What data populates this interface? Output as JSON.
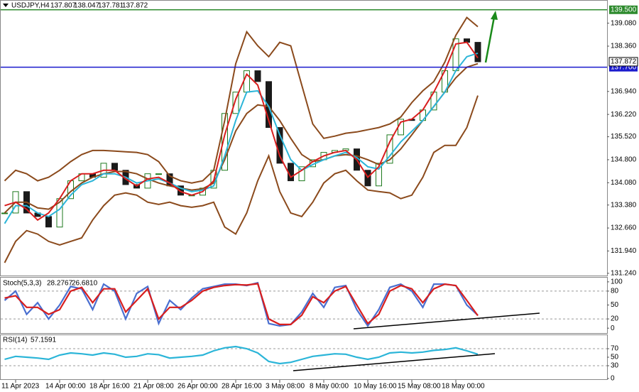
{
  "chart_data": [
    {
      "type": "candlestick",
      "title": "USDJPY,H4",
      "last_bar": {
        "open": 137.807,
        "high": 138.047,
        "low": 137.781,
        "close": 137.872
      },
      "categories": [
        null,
        "11 Apr 2023",
        null,
        null,
        null,
        "14 Apr 00:00",
        null,
        null,
        null,
        "18 Apr 16:00",
        null,
        null,
        null,
        "21 Apr 08:00",
        null,
        null,
        null,
        "26 Apr 00:00",
        null,
        null,
        null,
        "28 Apr 16:00",
        null,
        null,
        null,
        "3 May 08:00",
        null,
        null,
        null,
        "8 May 00:00",
        null,
        null,
        null,
        "10 May 16:00",
        null,
        null,
        null,
        "15 May 08:00",
        null,
        null,
        null,
        "18 May 00:00",
        null,
        null
      ],
      "ylim": [
        131.17,
        139.74
      ],
      "yticks": [
        {
          "value": 139.08,
          "label": "139.080"
        },
        {
          "value": 138.36,
          "label": "138.360"
        },
        {
          "value": 136.94,
          "label": "136.940"
        },
        {
          "value": 136.22,
          "label": "136.220"
        },
        {
          "value": 135.52,
          "label": "135.520"
        },
        {
          "value": 134.8,
          "label": "134.800"
        },
        {
          "value": 134.08,
          "label": "134.080"
        },
        {
          "value": 133.38,
          "label": "133.380"
        },
        {
          "value": 132.66,
          "label": "132.660"
        },
        {
          "value": 131.94,
          "label": "131.940"
        },
        {
          "value": 131.24,
          "label": "131.240"
        }
      ],
      "series": [
        {
          "draw": "candles",
          "color": "#1a1a1a",
          "values": [
            133.13,
            133.8,
            133.13,
            133.02,
            132.69,
            133.58,
            134.14,
            134.36,
            134.25,
            134.69,
            134.47,
            134.02,
            133.91,
            134.36,
            134.36,
            133.98,
            133.69,
            133.69,
            133.91,
            134.47,
            136.25,
            136.92,
            137.59,
            137.25,
            135.81,
            134.69,
            134.14,
            134.58,
            134.8,
            135.03,
            135.09,
            135.14,
            134.47,
            133.98,
            134.69,
            135.58,
            136.07,
            136.03,
            136.36,
            136.92,
            137.59,
            138.59,
            138.48,
            137.87
          ]
        },
        {
          "draw": "line",
          "color": "#8b4a1c",
          "values": [
            134.14,
            134.47,
            134.36,
            134.14,
            134.25,
            134.47,
            134.74,
            134.96,
            135.09,
            135.09,
            135.07,
            135.05,
            135.03,
            134.96,
            134.74,
            134.29,
            134.14,
            134.07,
            134.14,
            134.47,
            136.03,
            137.81,
            138.81,
            138.37,
            138.03,
            138.48,
            138.37,
            137.14,
            135.92,
            135.47,
            135.54,
            135.63,
            135.67,
            135.74,
            135.81,
            135.92,
            136.14,
            136.59,
            136.96,
            137.25,
            137.86,
            138.7,
            139.26,
            138.97
          ]
        },
        {
          "draw": "line",
          "color": "#8b4a1c",
          "values": [
            133.13,
            133.47,
            133.47,
            133.29,
            133.25,
            133.47,
            133.8,
            134.07,
            134.25,
            134.36,
            134.43,
            134.43,
            134.36,
            134.2,
            134.07,
            133.98,
            133.91,
            133.85,
            133.89,
            134.07,
            134.8,
            135.7,
            136.25,
            136.52,
            136.47,
            136.03,
            135.47,
            134.96,
            134.74,
            134.8,
            134.92,
            134.96,
            134.92,
            134.8,
            134.65,
            134.8,
            135.14,
            135.58,
            136.03,
            136.47,
            136.92,
            137.37,
            137.7,
            137.81
          ]
        },
        {
          "draw": "line",
          "color": "#8b4a1c",
          "values": [
            131.57,
            132.24,
            132.58,
            132.47,
            132.24,
            132.13,
            132.24,
            132.35,
            132.91,
            133.36,
            133.69,
            133.76,
            133.69,
            133.47,
            133.4,
            133.47,
            133.36,
            133.31,
            133.36,
            133.47,
            132.69,
            132.47,
            133.13,
            134.14,
            134.92,
            133.8,
            133.13,
            133.02,
            133.47,
            134.07,
            134.36,
            134.47,
            134.14,
            133.85,
            133.8,
            133.76,
            133.58,
            133.69,
            134.25,
            135.03,
            135.25,
            135.25,
            135.81,
            136.81
          ]
        },
        {
          "draw": "line",
          "color": "#2bb5d8",
          "values": [
            132.8,
            133.36,
            133.36,
            133.13,
            133.02,
            133.25,
            133.69,
            134.02,
            134.14,
            134.36,
            134.36,
            134.25,
            134.07,
            134.14,
            134.2,
            134.07,
            133.91,
            133.8,
            133.85,
            133.98,
            134.92,
            136.03,
            136.92,
            136.96,
            136.47,
            135.58,
            134.8,
            134.47,
            134.65,
            134.8,
            134.92,
            135.03,
            134.87,
            134.58,
            134.51,
            134.92,
            135.36,
            135.69,
            136.03,
            136.47,
            136.92,
            137.59,
            138.03,
            138.14
          ]
        },
        {
          "draw": "line",
          "color": "#d81e1e",
          "values": [
            133.36,
            133.47,
            133.25,
            132.91,
            133.13,
            133.58,
            134.14,
            134.36,
            134.36,
            134.47,
            134.47,
            134.2,
            133.98,
            134.2,
            134.25,
            134.07,
            133.8,
            133.69,
            133.8,
            134.14,
            135.58,
            136.7,
            137.48,
            137.14,
            136.03,
            134.92,
            134.25,
            134.47,
            134.74,
            134.92,
            135.03,
            135.09,
            134.8,
            134.25,
            134.58,
            135.36,
            135.98,
            136.07,
            136.36,
            136.92,
            137.59,
            138.43,
            138.48,
            137.99
          ]
        }
      ],
      "hlines": [
        {
          "value": 139.5,
          "label": "139.500",
          "color": "#2e8b2e"
        },
        {
          "value": 137.7,
          "label": "137.700",
          "color": "#1a1acd"
        }
      ],
      "price_label": {
        "value": 137.872,
        "label": "137.872"
      }
    },
    {
      "type": "line",
      "title": "Stoch(5,3,3)",
      "readout": [
        28.2767,
        {
          "value": 26.681,
          "label": "26.6810"
        }
      ],
      "ylim": [
        -9,
        109
      ],
      "yticks": [
        0,
        20,
        50,
        80,
        100
      ],
      "levels": [
        20,
        80
      ],
      "series": [
        {
          "color": "#4a6fd0",
          "values": [
            60,
            80,
            30,
            55,
            20,
            50,
            90,
            85,
            40,
            95,
            80,
            20,
            75,
            90,
            10,
            60,
            40,
            65,
            85,
            90,
            95,
            95,
            92,
            98,
            10,
            5,
            8,
            35,
            75,
            45,
            88,
            92,
            40,
            5,
            40,
            88,
            95,
            80,
            45,
            95,
            95,
            92,
            50,
            28
          ]
        },
        {
          "color": "#d81e1e",
          "values": [
            65,
            70,
            45,
            45,
            30,
            40,
            80,
            88,
            55,
            85,
            85,
            35,
            60,
            85,
            20,
            45,
            45,
            60,
            80,
            88,
            92,
            94,
            93,
            96,
            20,
            8,
            8,
            28,
            68,
            55,
            80,
            90,
            50,
            10,
            30,
            80,
            92,
            85,
            55,
            85,
            95,
            92,
            60,
            27
          ]
        }
      ]
    },
    {
      "type": "line",
      "title": "RSI(14)",
      "readout": [
        57.1591
      ],
      "ylim": [
        0,
        100
      ],
      "yticks": [
        0,
        30,
        50,
        70
      ],
      "levels": [
        30,
        70
      ],
      "series": [
        {
          "color": "#2bb5d8",
          "values": [
            45,
            52,
            50,
            48,
            45,
            55,
            60,
            58,
            55,
            60,
            57,
            50,
            52,
            58,
            56,
            48,
            50,
            52,
            55,
            65,
            72,
            75,
            70,
            60,
            40,
            35,
            38,
            45,
            52,
            55,
            58,
            57,
            50,
            45,
            50,
            60,
            62,
            60,
            62,
            66,
            68,
            72,
            65,
            57
          ]
        }
      ]
    }
  ]
}
